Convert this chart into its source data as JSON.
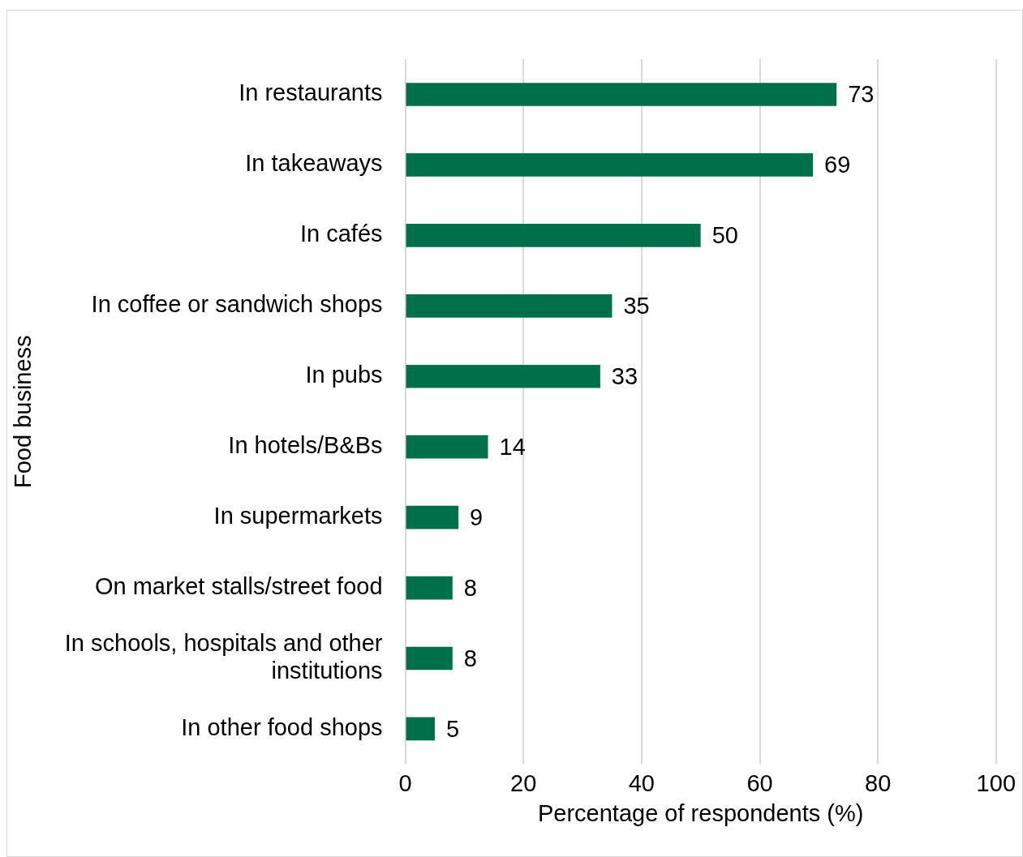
{
  "chart_data": {
    "type": "bar",
    "orientation": "horizontal",
    "xlabel": "Percentage of respondents (%)",
    "ylabel": "Food business",
    "categories": [
      "In restaurants",
      "In takeaways",
      "In cafés",
      "In coffee or sandwich shops",
      "In pubs",
      "In hotels/B&Bs",
      "In supermarkets",
      "On market stalls/street food",
      "In schools, hospitals and other institutions",
      "In other food shops"
    ],
    "values": [
      73,
      69,
      50,
      35,
      33,
      14,
      9,
      8,
      8,
      5
    ],
    "color": "#00704a",
    "xlim": [
      0,
      100
    ],
    "xticks": [
      0,
      20,
      40,
      60,
      80,
      100
    ],
    "grid": "x",
    "data_labels": true,
    "legend": false
  }
}
